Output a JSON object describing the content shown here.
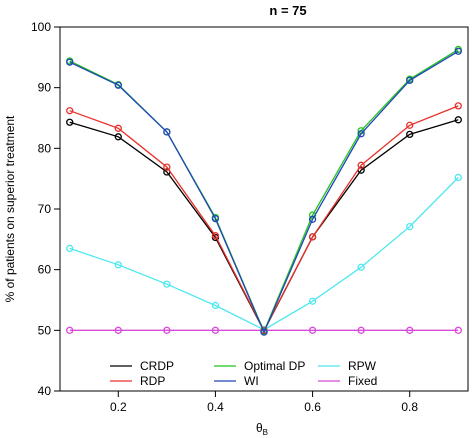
{
  "chart_data": {
    "type": "line",
    "title": "n = 75",
    "xlabel": "θ",
    "xlabel_sub": "B",
    "ylabel": "% of patients on superior treatment",
    "x": [
      0.1,
      0.2,
      0.3,
      0.4,
      0.5,
      0.6,
      0.7,
      0.8,
      0.9
    ],
    "xlim": [
      0.08,
      0.92
    ],
    "ylim": [
      40,
      100
    ],
    "x_ticks": [
      "0.2",
      "0.4",
      "0.6",
      "0.8"
    ],
    "y_ticks": [
      "40",
      "50",
      "60",
      "70",
      "80",
      "90",
      "100"
    ],
    "grid": false,
    "legend_position": "bottom-center",
    "series": [
      {
        "name": "CRDP",
        "color": "#000000",
        "values": [
          84.3,
          81.9,
          76.1,
          65.3,
          49.9,
          65.4,
          76.4,
          82.3,
          84.7
        ]
      },
      {
        "name": "RDP",
        "color": "#e8302a",
        "values": [
          86.2,
          83.3,
          76.9,
          65.6,
          50.0,
          65.4,
          77.2,
          83.8,
          87.0
        ]
      },
      {
        "name": "Optimal DP",
        "color": "#22c422",
        "values": [
          94.4,
          90.5,
          82.7,
          68.6,
          49.8,
          69.0,
          82.9,
          91.4,
          96.3
        ]
      },
      {
        "name": "WI",
        "color": "#2146b8",
        "values": [
          94.2,
          90.4,
          82.7,
          68.4,
          49.7,
          68.3,
          82.4,
          91.2,
          96.0
        ]
      },
      {
        "name": "RPW",
        "color": "#4ee8f0",
        "values": [
          63.5,
          60.8,
          57.6,
          54.1,
          50.1,
          54.8,
          60.4,
          67.1,
          75.2
        ]
      },
      {
        "name": "Fixed",
        "color": "#d84ad8",
        "values": [
          50.0,
          50.0,
          50.0,
          50.0,
          50.0,
          50.0,
          50.0,
          50.0,
          50.0
        ]
      }
    ]
  }
}
